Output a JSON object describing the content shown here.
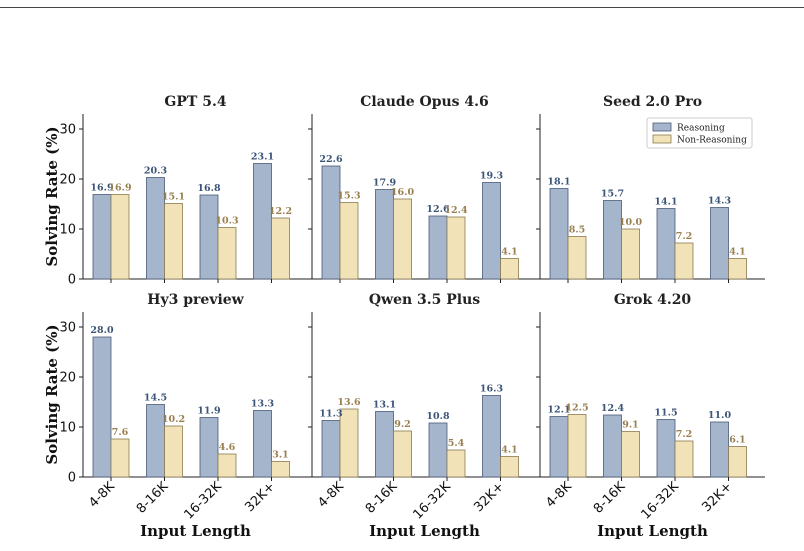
{
  "colors": {
    "reasoning": "#a5b5cc",
    "reasoning_edge": "#4a5a78",
    "non_reasoning": "#f2e2b8",
    "non_reasoning_edge": "#8a7a50",
    "reasoning_text": "#3b5478",
    "non_reasoning_text": "#9a8050"
  },
  "chart_data": [
    {
      "type": "bar",
      "title": "GPT 5.4",
      "categories": [
        "4-8K",
        "8-16K",
        "16-32K",
        "32K+"
      ],
      "ylim": [
        0,
        33
      ],
      "yticks": [
        0,
        10,
        20,
        30
      ],
      "ylabel": "Solving Rate (%)",
      "xlabel": "",
      "series": [
        {
          "name": "Reasoning",
          "values": [
            16.9,
            20.3,
            16.8,
            23.1
          ]
        },
        {
          "name": "Non-Reasoning",
          "values": [
            16.9,
            15.1,
            10.3,
            12.2
          ]
        }
      ]
    },
    {
      "type": "bar",
      "title": "Claude Opus 4.6",
      "categories": [
        "4-8K",
        "8-16K",
        "16-32K",
        "32K+"
      ],
      "ylim": [
        0,
        33
      ],
      "yticks": [
        0,
        10,
        20,
        30
      ],
      "ylabel": "",
      "xlabel": "",
      "series": [
        {
          "name": "Reasoning",
          "values": [
            22.6,
            17.9,
            12.6,
            19.3
          ]
        },
        {
          "name": "Non-Reasoning",
          "values": [
            15.3,
            16.0,
            12.4,
            4.1
          ]
        }
      ]
    },
    {
      "type": "bar",
      "title": "Seed 2.0 Pro",
      "categories": [
        "4-8K",
        "8-16K",
        "16-32K",
        "32K+"
      ],
      "ylim": [
        0,
        33
      ],
      "yticks": [
        0,
        10,
        20,
        30
      ],
      "ylabel": "",
      "xlabel": "",
      "legend": "top-right",
      "series": [
        {
          "name": "Reasoning",
          "values": [
            18.1,
            15.7,
            14.1,
            14.3
          ]
        },
        {
          "name": "Non-Reasoning",
          "values": [
            8.5,
            10.0,
            7.2,
            4.1
          ]
        }
      ]
    },
    {
      "type": "bar",
      "title": "Hy3 preview",
      "categories": [
        "4-8K",
        "8-16K",
        "16-32K",
        "32K+"
      ],
      "ylim": [
        0,
        33
      ],
      "yticks": [
        0,
        10,
        20,
        30
      ],
      "ylabel": "Solving Rate (%)",
      "xlabel": "Input Length",
      "series": [
        {
          "name": "Reasoning",
          "values": [
            28.0,
            14.5,
            11.9,
            13.3
          ]
        },
        {
          "name": "Non-Reasoning",
          "values": [
            7.6,
            10.2,
            4.6,
            3.1
          ]
        }
      ]
    },
    {
      "type": "bar",
      "title": "Qwen 3.5 Plus",
      "categories": [
        "4-8K",
        "8-16K",
        "16-32K",
        "32K+"
      ],
      "ylim": [
        0,
        33
      ],
      "yticks": [
        0,
        10,
        20,
        30
      ],
      "ylabel": "",
      "xlabel": "Input Length",
      "series": [
        {
          "name": "Reasoning",
          "values": [
            11.3,
            13.1,
            10.8,
            16.3
          ]
        },
        {
          "name": "Non-Reasoning",
          "values": [
            13.6,
            9.2,
            5.4,
            4.1
          ]
        }
      ]
    },
    {
      "type": "bar",
      "title": "Grok 4.20",
      "categories": [
        "4-8K",
        "8-16K",
        "16-32K",
        "32K+"
      ],
      "ylim": [
        0,
        33
      ],
      "yticks": [
        0,
        10,
        20,
        30
      ],
      "ylabel": "",
      "xlabel": "Input Length",
      "series": [
        {
          "name": "Reasoning",
          "values": [
            12.1,
            12.4,
            11.5,
            11.0
          ]
        },
        {
          "name": "Non-Reasoning",
          "values": [
            12.5,
            9.1,
            7.2,
            6.1
          ]
        }
      ]
    }
  ]
}
